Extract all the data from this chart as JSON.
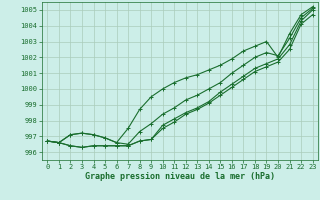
{
  "title": "Graphe pression niveau de la mer (hPa)",
  "bg_color": "#cceee8",
  "grid_color": "#aaccbb",
  "line_color": "#1a6e2e",
  "xlim": [
    -0.5,
    23.5
  ],
  "ylim": [
    995.5,
    1005.5
  ],
  "yticks": [
    996,
    997,
    998,
    999,
    1000,
    1001,
    1002,
    1003,
    1004,
    1005
  ],
  "xticks": [
    0,
    1,
    2,
    3,
    4,
    5,
    6,
    7,
    8,
    9,
    10,
    11,
    12,
    13,
    14,
    15,
    16,
    17,
    18,
    19,
    20,
    21,
    22,
    23
  ],
  "series": [
    [
      996.7,
      996.6,
      996.4,
      996.3,
      996.4,
      996.4,
      996.4,
      996.4,
      996.7,
      996.8,
      997.7,
      998.1,
      998.5,
      998.8,
      999.2,
      999.8,
      1000.3,
      1000.8,
      1001.3,
      1001.6,
      1001.9,
      1002.8,
      1004.3,
      1005.0
    ],
    [
      996.7,
      996.6,
      996.4,
      996.3,
      996.4,
      996.4,
      996.4,
      996.4,
      996.7,
      996.8,
      997.5,
      997.9,
      998.4,
      998.7,
      999.1,
      999.6,
      1000.1,
      1000.6,
      1001.1,
      1001.4,
      1001.7,
      1002.5,
      1004.1,
      1004.7
    ],
    [
      996.7,
      996.6,
      997.1,
      997.2,
      997.1,
      996.9,
      996.6,
      996.5,
      997.3,
      997.8,
      998.4,
      998.8,
      999.3,
      999.6,
      1000.0,
      1000.4,
      1001.0,
      1001.5,
      1002.0,
      1002.3,
      1002.1,
      1003.2,
      1004.5,
      1005.1
    ],
    [
      996.7,
      996.6,
      997.1,
      997.2,
      997.1,
      996.9,
      996.6,
      997.5,
      998.7,
      999.5,
      1000.0,
      1000.4,
      1000.7,
      1000.9,
      1001.2,
      1001.5,
      1001.9,
      1002.4,
      1002.7,
      1003.0,
      1002.0,
      1003.5,
      1004.7,
      1005.2
    ]
  ],
  "marker": "+",
  "markersize": 3.5,
  "linewidth": 0.8
}
